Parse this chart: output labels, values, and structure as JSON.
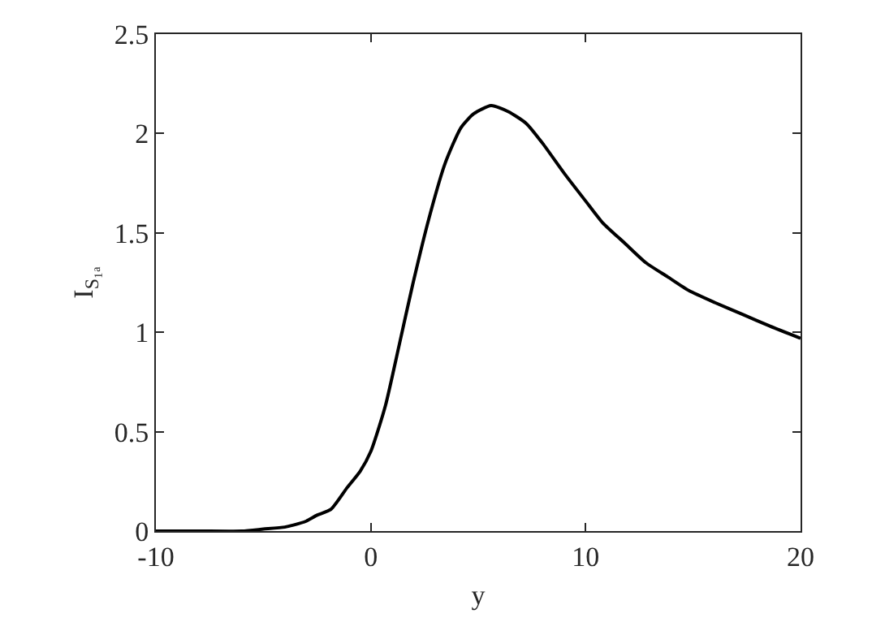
{
  "chart_data": {
    "type": "line",
    "xlabel": "y",
    "ylabel": "I$_{S₁ₐ}$",
    "x": [
      -10,
      -8,
      -6,
      -5,
      -4,
      -3.6,
      -3,
      -2.5,
      -1.85,
      -1.09,
      -0.5,
      0,
      0.68,
      1.31,
      1.95,
      2.7,
      3.46,
      4.2,
      4.8,
      5.6,
      6.4,
      7.24,
      8,
      9,
      10,
      10.8,
      11.8,
      12.8,
      13.8,
      14.8,
      16,
      17.3,
      18.6,
      20
    ],
    "series": [
      {
        "color": "#000000",
        "values": [
          0,
          0,
          0,
          0.01,
          0.02,
          0.03,
          0.05,
          0.08,
          0.11,
          0.22,
          0.3,
          0.4,
          0.63,
          0.93,
          1.24,
          1.57,
          1.85,
          2.03,
          2.1,
          2.14,
          2.11,
          2.05,
          1.95,
          1.8,
          1.66,
          1.55,
          1.45,
          1.35,
          1.28,
          1.21,
          1.15,
          1.09,
          1.03,
          0.97
        ]
      }
    ],
    "xlim": [
      -10,
      20
    ],
    "xticks": [
      -10,
      0,
      10,
      20
    ],
    "ylim": [
      0,
      2.5
    ],
    "yticks": [
      0,
      0.5,
      1,
      1.5,
      2,
      2.5
    ],
    "grid": false,
    "marker": "none",
    "line_style": "solid"
  }
}
